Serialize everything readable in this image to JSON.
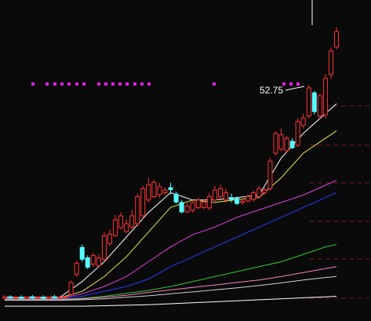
{
  "chart_data": {
    "type": "candlestick",
    "annotation": "52.75",
    "up_color": "#ff3232",
    "down_color": "#54ffff",
    "ylim": [
      5,
      70
    ],
    "open": [
      9.6,
      9.9,
      9.7,
      9.8,
      9.6,
      9.9,
      9.7,
      9.8,
      9.6,
      9.9,
      9.7,
      9.8,
      10.4,
      14.4,
      19.9,
      17.8,
      16.5,
      16.2,
      17.5,
      20.7,
      22.3,
      23.9,
      23.1,
      24.0,
      24.7,
      26.3,
      29.5,
      30.2,
      30.6,
      31.0,
      32.0,
      30.7,
      29.0,
      27.1,
      27.4,
      28.0,
      28.0,
      27.9,
      29.5,
      30.2,
      29.5,
      30.0,
      29.8,
      29.0,
      29.3,
      29.6,
      30.2,
      31.0,
      31.8,
      39.0,
      39.8,
      39.5,
      41.4,
      40.6,
      44.6,
      46.5,
      51.2,
      46.5,
      46.8,
      54.9,
      60.5
    ],
    "high": [
      10.2,
      10.2,
      10.1,
      10.2,
      10.0,
      10.3,
      10.1,
      10.2,
      10.0,
      10.3,
      10.1,
      10.2,
      13.2,
      17.2,
      20.5,
      18.3,
      18.8,
      18.5,
      23.0,
      23.5,
      26.5,
      27.0,
      25.6,
      27.5,
      30.8,
      32.4,
      34.0,
      33.6,
      33.0,
      32.0,
      33.0,
      31.2,
      29.5,
      28.8,
      29.5,
      30.0,
      29.6,
      31.0,
      32.4,
      32.6,
      31.8,
      30.8,
      30.2,
      29.8,
      30.6,
      31.4,
      32.3,
      32.0,
      38.0,
      43.4,
      44.0,
      42.5,
      42.0,
      46.0,
      47.0,
      52.75,
      51.6,
      51.0,
      55.0,
      60.4,
      64.5
    ],
    "low": [
      9.3,
      9.4,
      9.3,
      9.4,
      9.3,
      9.4,
      9.3,
      9.4,
      9.3,
      9.4,
      9.3,
      9.4,
      10.0,
      14.0,
      17.0,
      15.5,
      16.0,
      16.0,
      17.0,
      20.2,
      22.0,
      23.5,
      22.8,
      23.6,
      24.2,
      25.8,
      29.0,
      29.8,
      30.0,
      30.5,
      30.6,
      28.8,
      26.8,
      26.8,
      27.0,
      27.6,
      27.6,
      27.5,
      29.0,
      29.8,
      29.0,
      29.0,
      28.5,
      28.6,
      29.0,
      29.2,
      29.8,
      30.6,
      31.4,
      38.5,
      39.4,
      39.0,
      39.8,
      40.2,
      44.0,
      46.0,
      46.8,
      45.8,
      46.0,
      54.0,
      60.0
    ],
    "close": [
      9.9,
      9.7,
      9.8,
      9.6,
      9.9,
      9.7,
      9.8,
      9.6,
      9.9,
      9.7,
      9.8,
      9.9,
      12.8,
      16.7,
      17.5,
      15.9,
      18.3,
      17.8,
      22.3,
      22.6,
      25.5,
      26.3,
      24.7,
      26.3,
      30.2,
      31.8,
      32.6,
      33.1,
      32.2,
      31.5,
      31.6,
      29.1,
      27.1,
      28.3,
      29.0,
      29.5,
      29.1,
      30.2,
      31.5,
      31.8,
      31.0,
      29.6,
      28.8,
      29.3,
      30.2,
      31.0,
      31.8,
      31.5,
      37.4,
      43.0,
      42.7,
      42.0,
      40.1,
      45.4,
      46.1,
      52.2,
      47.4,
      50.6,
      54.1,
      59.7,
      63.6
    ],
    "lines": [
      {
        "color": "#ffffff",
        "x": [
          0,
          10,
          14,
          18,
          22,
          26,
          30,
          34,
          38,
          42,
          46,
          50,
          54,
          58,
          60
        ],
        "values": [
          9.8,
          9.8,
          13,
          17,
          22,
          27,
          31,
          29.5,
          29.5,
          30,
          30.5,
          38,
          43,
          47,
          49
        ]
      },
      {
        "color": "#e8e84a",
        "x": [
          0,
          10,
          14,
          18,
          22,
          26,
          30,
          34,
          38,
          42,
          46,
          50,
          54,
          58,
          60
        ],
        "values": [
          9.7,
          9.7,
          11,
          14,
          18,
          23,
          28,
          29.5,
          29,
          29.6,
          30,
          34,
          39,
          42,
          43.5
        ]
      },
      {
        "color": "#e040e0",
        "x": [
          0,
          10,
          14,
          18,
          22,
          26,
          30,
          34,
          38,
          42,
          46,
          50,
          54,
          58,
          60
        ],
        "values": [
          9.6,
          9.6,
          10.5,
          12,
          14,
          17,
          20,
          22.5,
          24,
          26,
          27.5,
          29,
          30.5,
          32.5,
          33.5
        ]
      },
      {
        "color": "#2a3cff",
        "x": [
          0,
          10,
          14,
          18,
          22,
          26,
          30,
          34,
          38,
          42,
          46,
          50,
          54,
          58,
          60
        ],
        "values": [
          9.5,
          9.5,
          10,
          11,
          12,
          13.5,
          16,
          18,
          20,
          22,
          24,
          26,
          28,
          30,
          31
        ]
      },
      {
        "color": "#32c832",
        "x": [
          0,
          10,
          14,
          18,
          22,
          26,
          30,
          34,
          38,
          42,
          46,
          50,
          54,
          58,
          60
        ],
        "values": [
          9.4,
          9.4,
          9.6,
          10,
          10.6,
          11.2,
          12,
          13,
          14,
          15,
          16,
          17,
          18.5,
          20,
          20.5
        ]
      },
      {
        "color": "#ff80c0",
        "x": [
          0,
          10,
          14,
          18,
          22,
          26,
          30,
          34,
          38,
          42,
          46,
          50,
          54,
          58,
          60
        ],
        "values": [
          9.3,
          9.3,
          9.5,
          9.8,
          10.2,
          10.8,
          11.3,
          11.8,
          12.3,
          12.8,
          13.3,
          14,
          14.8,
          15.6,
          16
        ]
      },
      {
        "color": "#d0d0d0",
        "x": [
          0,
          10,
          14,
          18,
          22,
          26,
          30,
          34,
          38,
          42,
          46,
          50,
          54,
          58,
          60
        ],
        "values": [
          9.2,
          9.2,
          9.3,
          9.5,
          9.8,
          10.1,
          10.5,
          10.9,
          11.3,
          11.7,
          12.2,
          12.7,
          13.3,
          13.8,
          14
        ]
      },
      {
        "color": "#ffffff",
        "x": [
          0,
          10,
          14,
          18,
          22,
          26,
          30,
          34,
          38,
          42,
          46,
          50,
          54,
          58,
          60
        ],
        "values": [
          8.0,
          8.0,
          8.0,
          8.1,
          8.2,
          8.3,
          8.5,
          8.7,
          8.9,
          9.1,
          9.3,
          9.5,
          9.7,
          9.9,
          10
        ]
      }
    ]
  }
}
